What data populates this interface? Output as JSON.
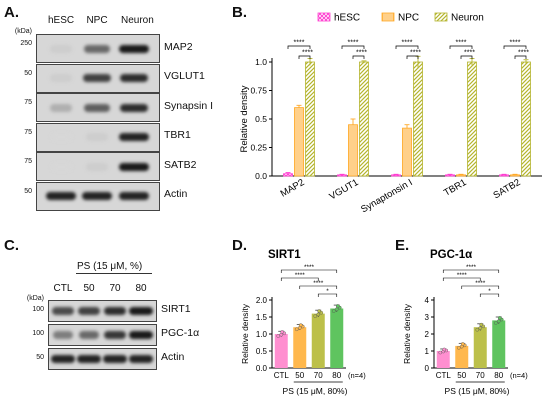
{
  "panels": {
    "A": "A.",
    "B": "B.",
    "C": "C.",
    "D": "D.",
    "E": "E."
  },
  "blotA": {
    "lanes": [
      "hESC",
      "NPC",
      "Neuron"
    ],
    "kda_label": "(kDa)",
    "rows": [
      {
        "label": "MAP2",
        "mw": "250",
        "bands": [
          0.05,
          0.55,
          0.95
        ]
      },
      {
        "label": "VGLUT1",
        "mw": "50",
        "bands": [
          0.05,
          0.75,
          0.85
        ]
      },
      {
        "label": "Synapsin I",
        "mw": "75",
        "bands": [
          0.2,
          0.6,
          0.85
        ]
      },
      {
        "label": "TBR1",
        "mw": "75",
        "bands": [
          0.0,
          0.05,
          0.9
        ]
      },
      {
        "label": "SATB2",
        "mw": "75",
        "bands": [
          0.0,
          0.05,
          0.95
        ]
      },
      {
        "label": "Actin",
        "mw": "50",
        "bands": [
          0.9,
          0.9,
          0.9
        ]
      }
    ]
  },
  "blotC": {
    "kda_label": "(kDa)",
    "ps_header": "PS (15 μM, %)",
    "lanes": [
      "CTL",
      "50",
      "70",
      "80"
    ],
    "rows": [
      {
        "label": "SIRT1",
        "mw": "100",
        "bands": [
          0.7,
          0.75,
          0.85,
          0.95
        ]
      },
      {
        "label": "PGC-1α",
        "mw": "100",
        "bands": [
          0.45,
          0.55,
          0.8,
          0.95
        ]
      },
      {
        "label": "Actin",
        "mw": "50",
        "bands": [
          0.9,
          0.9,
          0.9,
          0.9
        ]
      }
    ]
  },
  "chart_data": [
    {
      "type": "bar",
      "panel": "B",
      "categories": [
        "MAP2",
        "VGUT1",
        "Synaptonsin I",
        "TBR1",
        "SATB2"
      ],
      "series": [
        {
          "name": "hESC",
          "values": [
            0.02,
            0.01,
            0.01,
            0.01,
            0.01
          ],
          "errors": [
            0.01,
            0.005,
            0.005,
            0.005,
            0.005
          ],
          "color": "#ff3fd1"
        },
        {
          "name": "NPC",
          "values": [
            0.6,
            0.45,
            0.42,
            0.01,
            0.01
          ],
          "errors": [
            0.02,
            0.05,
            0.03,
            0.005,
            0.005
          ],
          "color": "#ffaa2a"
        },
        {
          "name": "Neuron",
          "values": [
            1.0,
            1.0,
            1.0,
            1.0,
            1.0
          ],
          "errors": [
            0.03,
            0.01,
            0.05,
            0.03,
            0.02
          ],
          "color": "#b5b52e"
        }
      ],
      "ylabel": "Relative density",
      "ylim": [
        0,
        1.0
      ],
      "yticks": [
        "0.0",
        "0.25",
        "0.5",
        "0.75",
        "1.0"
      ],
      "yticks_values": [
        0,
        0.25,
        0.5,
        0.75,
        1.0
      ],
      "significance": "****",
      "legend_placement": "top"
    },
    {
      "type": "bar",
      "panel": "D",
      "title": "SIRT1",
      "categories": [
        "CTL",
        "50",
        "70",
        "80"
      ],
      "values": [
        1.0,
        1.2,
        1.6,
        1.75
      ],
      "errors": [
        0.08,
        0.08,
        0.1,
        0.1
      ],
      "colors": [
        "#ff8fd0",
        "#ffb84d",
        "#bcc04a",
        "#5fc45f"
      ],
      "ylabel": "Relative density",
      "ylim": [
        0,
        2.0
      ],
      "yticks": [
        "0.0",
        "0.5",
        "1.0",
        "1.5",
        "2.0"
      ],
      "yticks_values": [
        0,
        0.5,
        1.0,
        1.5,
        2.0
      ],
      "n_label": "(n=4)",
      "xlabel": "PS (15 μM, 80%)",
      "brackets": [
        {
          "from": 0,
          "to": 3,
          "label": "****"
        },
        {
          "from": 0,
          "to": 2,
          "label": "****"
        },
        {
          "from": 1,
          "to": 3,
          "label": "****"
        },
        {
          "from": 2,
          "to": 3,
          "label": "*"
        }
      ]
    },
    {
      "type": "bar",
      "panel": "E",
      "title": "PGC-1α",
      "categories": [
        "CTL",
        "50",
        "70",
        "80"
      ],
      "values": [
        1.0,
        1.3,
        2.4,
        2.8
      ],
      "errors": [
        0.12,
        0.15,
        0.2,
        0.2
      ],
      "colors": [
        "#ff8fd0",
        "#ffb84d",
        "#bcc04a",
        "#5fc45f"
      ],
      "ylabel": "Relative density",
      "ylim": [
        0,
        4
      ],
      "yticks": [
        "0",
        "1",
        "2",
        "3",
        "4"
      ],
      "yticks_values": [
        0,
        1,
        2,
        3,
        4
      ],
      "n_label": "(n=4)",
      "xlabel": "PS (15 μM, 80%)",
      "brackets": [
        {
          "from": 0,
          "to": 3,
          "label": "****"
        },
        {
          "from": 0,
          "to": 2,
          "label": "****"
        },
        {
          "from": 1,
          "to": 3,
          "label": "****"
        },
        {
          "from": 2,
          "to": 3,
          "label": "*"
        }
      ]
    }
  ]
}
